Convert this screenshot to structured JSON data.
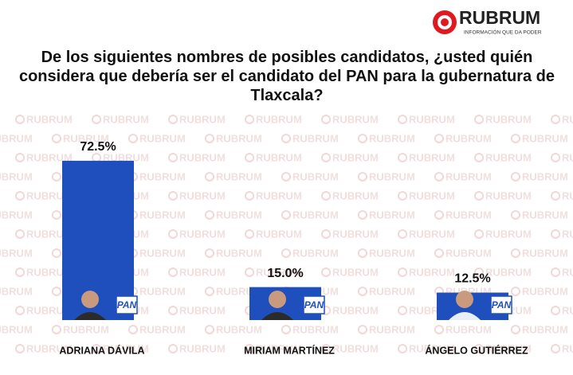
{
  "chart_data": {
    "type": "bar",
    "brand": "RUBRUM",
    "brand_tagline": "INFORMACIÓN QUE DA PODER",
    "title": "De los siguientes nombres de posibles candidatos, ¿usted quién considera que debería ser el candidato del PAN para la gubernatura de Tlaxcala?",
    "watermark": "RUBRUM",
    "badge": "PAN",
    "categories": [
      "ADRIANA DÁVILA",
      "MIRIAM MARTÍNEZ",
      "ÁNGELO GUTIÉRREZ"
    ],
    "values": [
      72.5,
      15.0,
      12.5
    ],
    "value_labels": [
      "72.5%",
      "15.0%",
      "12.5%"
    ],
    "color": "#1f4fbd"
  }
}
